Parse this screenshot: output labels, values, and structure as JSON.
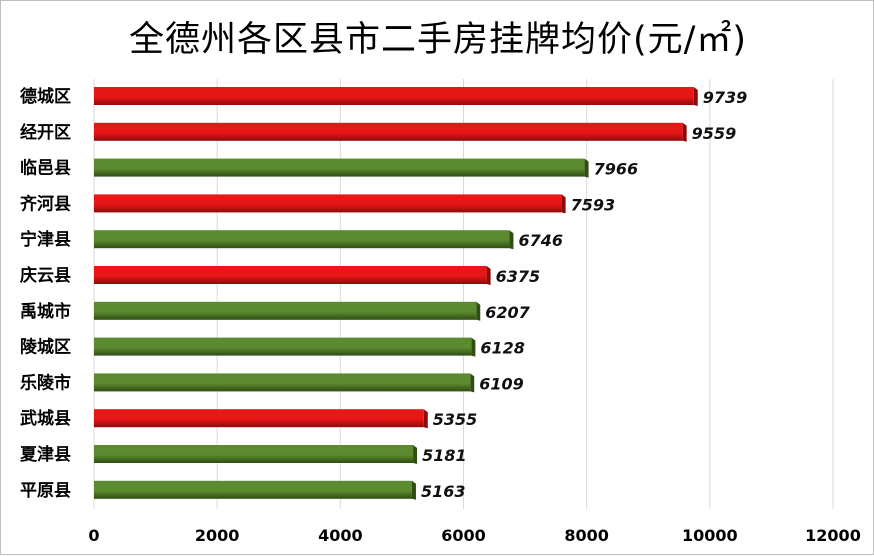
{
  "chart_data": {
    "type": "bar",
    "orientation": "horizontal",
    "title": "全德州各区县市二手房挂牌均价(元/㎡)",
    "categories": [
      "德城区",
      "经开区",
      "临邑县",
      "齐河县",
      "宁津县",
      "庆云县",
      "禹城市",
      "陵城区",
      "乐陵市",
      "武城县",
      "夏津县",
      "平原县"
    ],
    "values": [
      9739,
      9559,
      7966,
      7593,
      6746,
      6375,
      6207,
      6128,
      6109,
      5355,
      5181,
      5163
    ],
    "bar_colors": [
      "red",
      "red",
      "green",
      "red",
      "green",
      "red",
      "green",
      "green",
      "green",
      "red",
      "green",
      "green"
    ],
    "xlim": [
      0,
      12000
    ],
    "xticks": [
      0,
      2000,
      4000,
      6000,
      8000,
      10000,
      12000
    ],
    "grid": "vertical",
    "legend": "none",
    "colors": {
      "red": "#e81717",
      "red_dark": "#8e0a0a",
      "green": "#5c8a2e",
      "green_dark": "#2f4d14",
      "grid": "#d9d9d9"
    }
  }
}
